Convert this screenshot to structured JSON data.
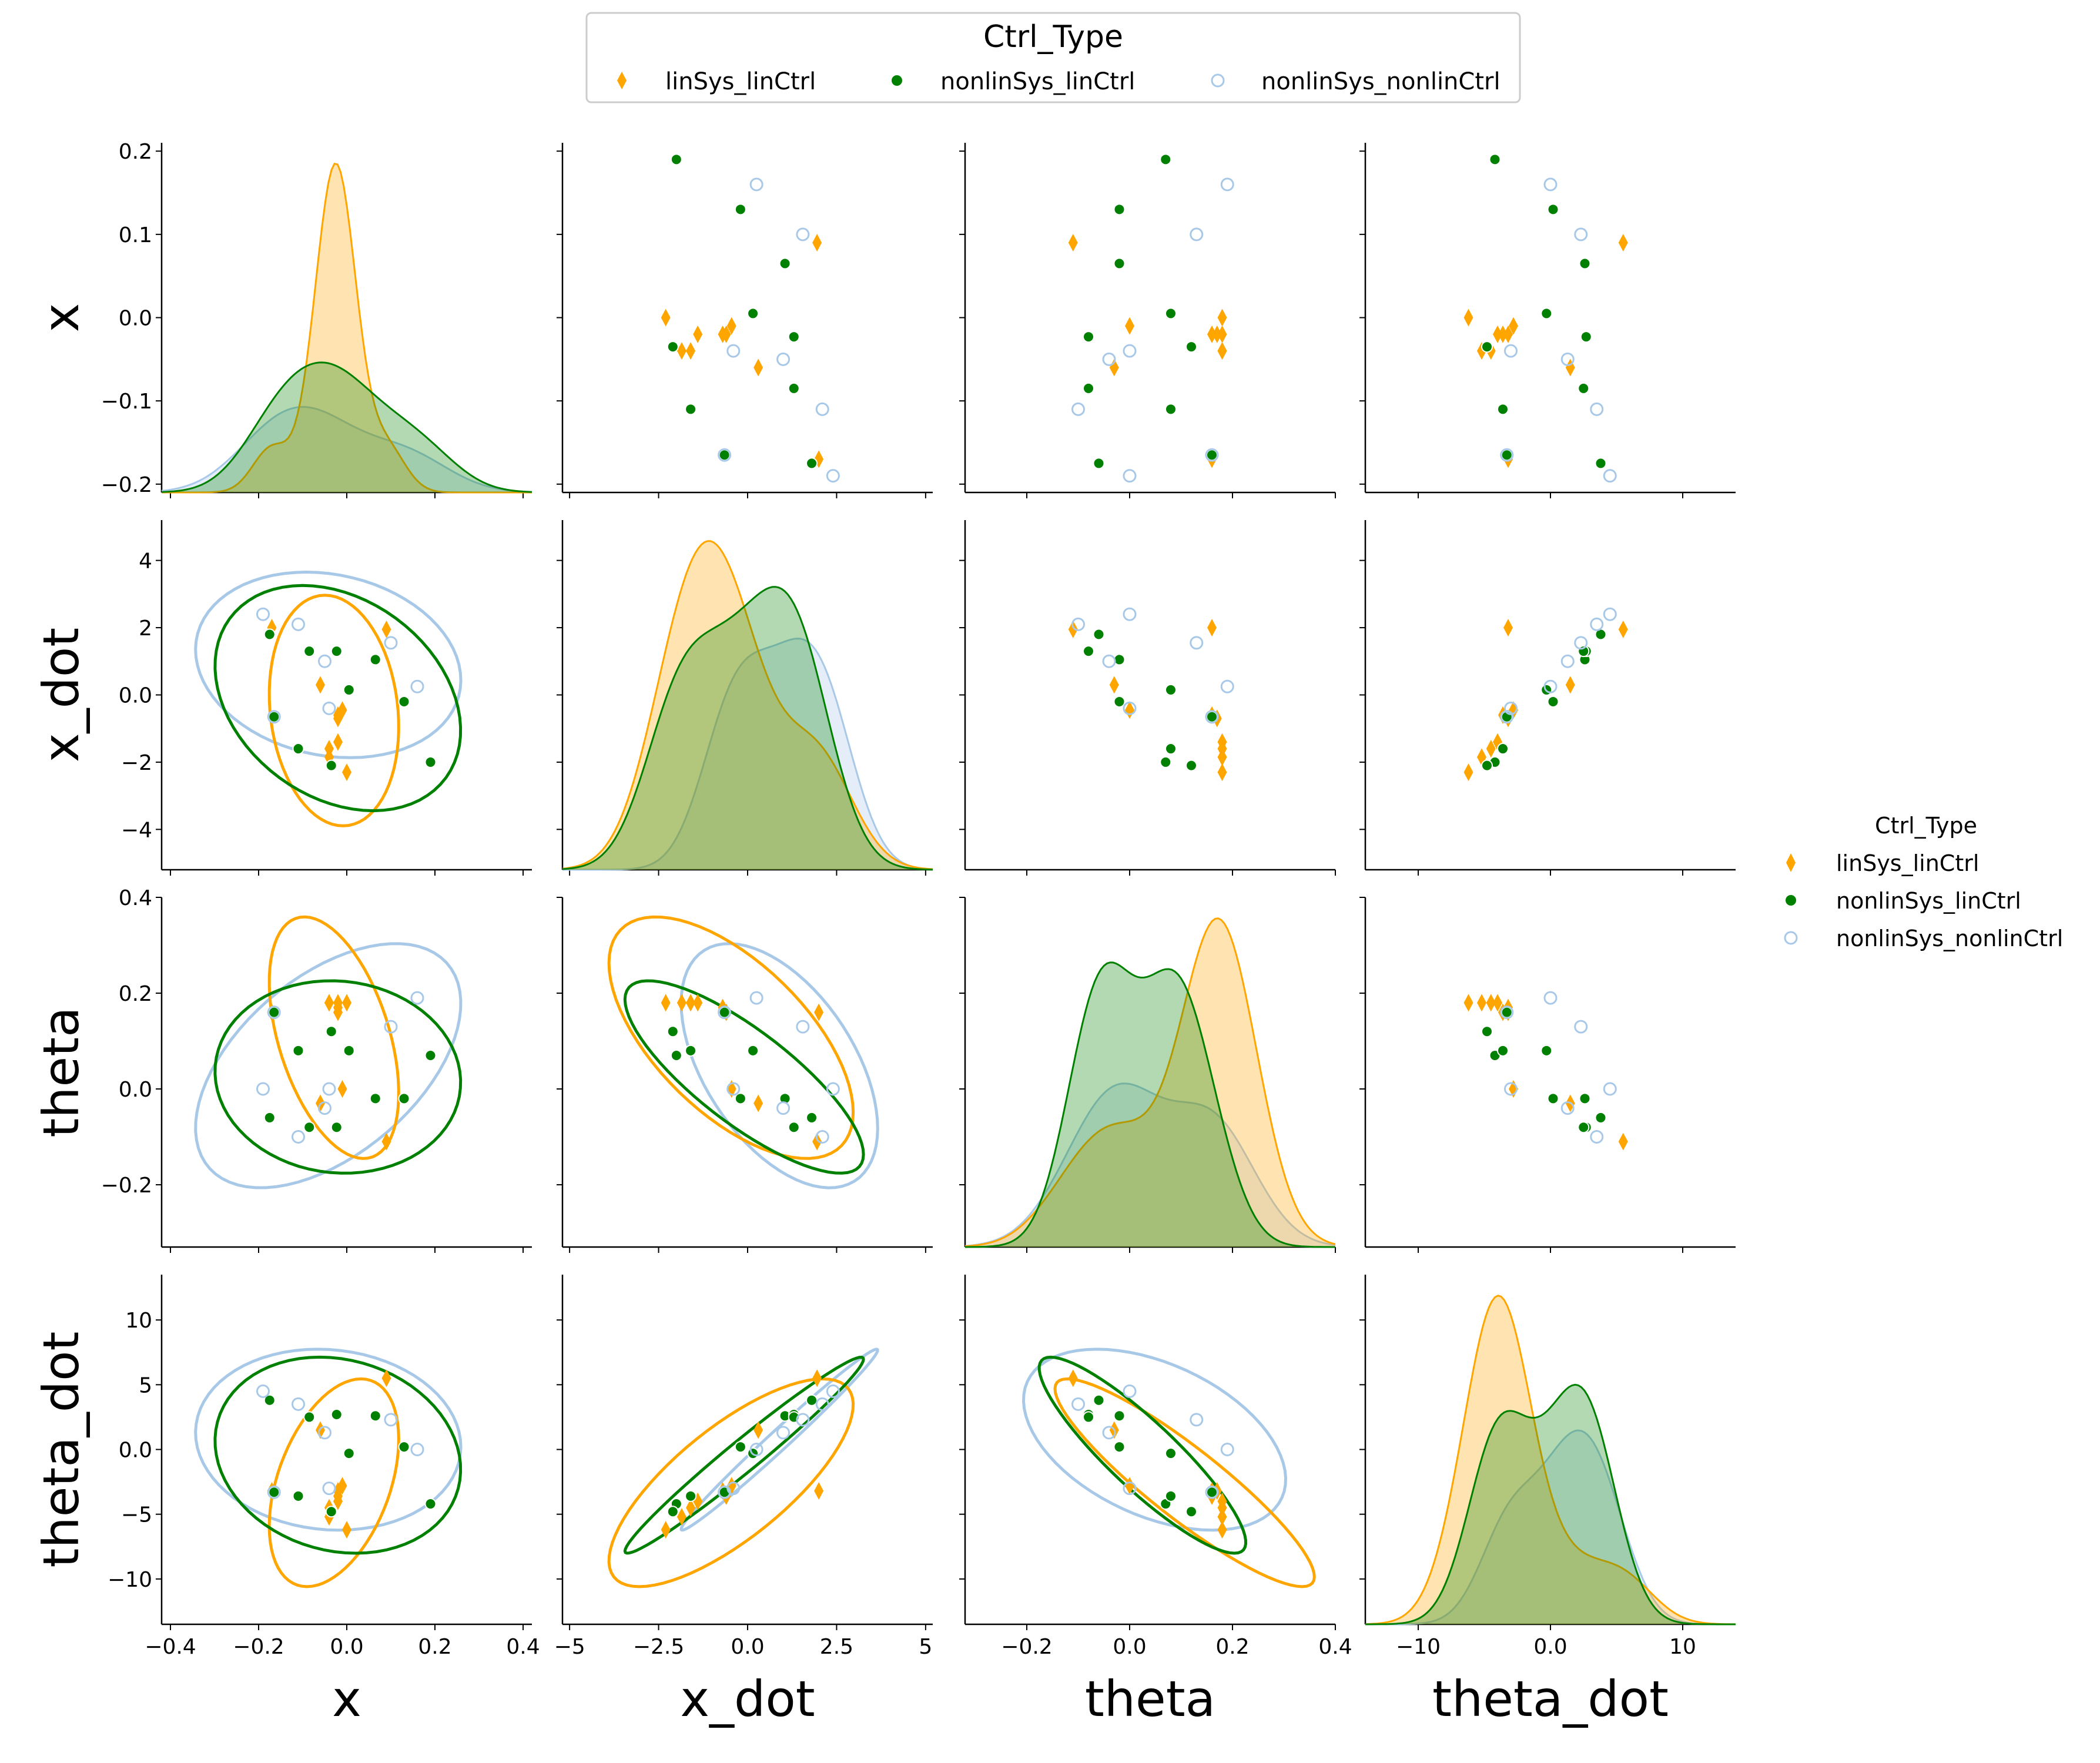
{
  "chart_data": {
    "type": "pairplot",
    "variables": [
      "x",
      "x_dot",
      "theta",
      "theta_dot"
    ],
    "axis_labels": [
      "x",
      "x_dot",
      "theta",
      "theta_dot"
    ],
    "axis_ranges": [
      [
        -0.21,
        0.21
      ],
      [
        -5.2,
        5.2
      ],
      [
        -0.33,
        0.4
      ],
      [
        -13.5,
        13.5
      ]
    ],
    "ticks": [
      [
        -0.2,
        -0.1,
        0.0,
        0.1,
        0.2
      ],
      [
        -4,
        -2,
        0,
        2,
        4
      ],
      [
        -0.2,
        0.0,
        0.2,
        0.4
      ],
      [
        -10,
        -5,
        0,
        5,
        10
      ]
    ],
    "x_ticks": [
      [
        -0.4,
        -0.2,
        0.0,
        0.2,
        0.4
      ],
      [
        -5.0,
        -2.5,
        0.0,
        2.5,
        5.0
      ],
      [
        -0.2,
        0.0,
        0.2,
        0.4
      ],
      [
        -10,
        0,
        10
      ]
    ],
    "x_axis_ranges": [
      [
        -0.42,
        0.42
      ],
      [
        -5.2,
        5.2
      ],
      [
        -0.32,
        0.4
      ],
      [
        -14,
        14
      ]
    ],
    "legend": {
      "title": "Ctrl_Type",
      "entries": [
        "linSys_linCtrl",
        "nonlinSys_linCtrl",
        "nonlinSys_nonlinCtrl"
      ]
    },
    "series": [
      {
        "name": "linSys_linCtrl",
        "color": "#FFA500",
        "marker": "diamond",
        "points": [
          [
            0.09,
            1.95,
            -0.11,
            5.5
          ],
          [
            -0.04,
            -1.6,
            0.18,
            -4.5
          ],
          [
            -0.02,
            -1.4,
            0.18,
            -4.0
          ],
          [
            -0.01,
            -0.45,
            0.0,
            -2.8
          ],
          [
            -0.02,
            -0.7,
            0.17,
            -3.2
          ],
          [
            -0.06,
            0.3,
            -0.03,
            1.5
          ],
          [
            -0.17,
            2.0,
            0.16,
            -3.2
          ],
          [
            -0.04,
            -1.85,
            0.18,
            -5.2
          ],
          [
            0.0,
            -2.3,
            0.18,
            -6.2
          ],
          [
            -0.02,
            -0.6,
            0.16,
            -3.6
          ]
        ]
      },
      {
        "name": "nonlinSys_linCtrl",
        "color": "#008000",
        "marker": "circle",
        "points": [
          [
            0.19,
            -2.0,
            0.07,
            -4.2
          ],
          [
            0.13,
            -0.2,
            -0.02,
            0.2
          ],
          [
            0.065,
            1.05,
            -0.02,
            2.6
          ],
          [
            0.005,
            0.15,
            0.08,
            -0.3
          ],
          [
            -0.023,
            1.3,
            -0.08,
            2.7
          ],
          [
            -0.035,
            -2.1,
            0.12,
            -4.8
          ],
          [
            -0.085,
            1.3,
            -0.08,
            2.5
          ],
          [
            -0.11,
            -1.6,
            0.08,
            -3.6
          ],
          [
            -0.165,
            -0.65,
            0.16,
            -3.3
          ],
          [
            -0.175,
            1.8,
            -0.06,
            3.8
          ]
        ]
      },
      {
        "name": "nonlinSys_nonlinCtrl",
        "color": "#A8C8E8",
        "marker": "open-circle",
        "points": [
          [
            0.16,
            0.25,
            0.19,
            0.0
          ],
          [
            0.1,
            1.55,
            0.13,
            2.3
          ],
          [
            -0.05,
            1.0,
            -0.04,
            1.3
          ],
          [
            -0.11,
            2.1,
            -0.1,
            3.5
          ],
          [
            -0.19,
            2.4,
            0.0,
            4.5
          ],
          [
            -0.165,
            -0.65,
            0.16,
            -3.3
          ],
          [
            -0.04,
            -0.4,
            0.0,
            -3.0
          ]
        ]
      }
    ]
  }
}
